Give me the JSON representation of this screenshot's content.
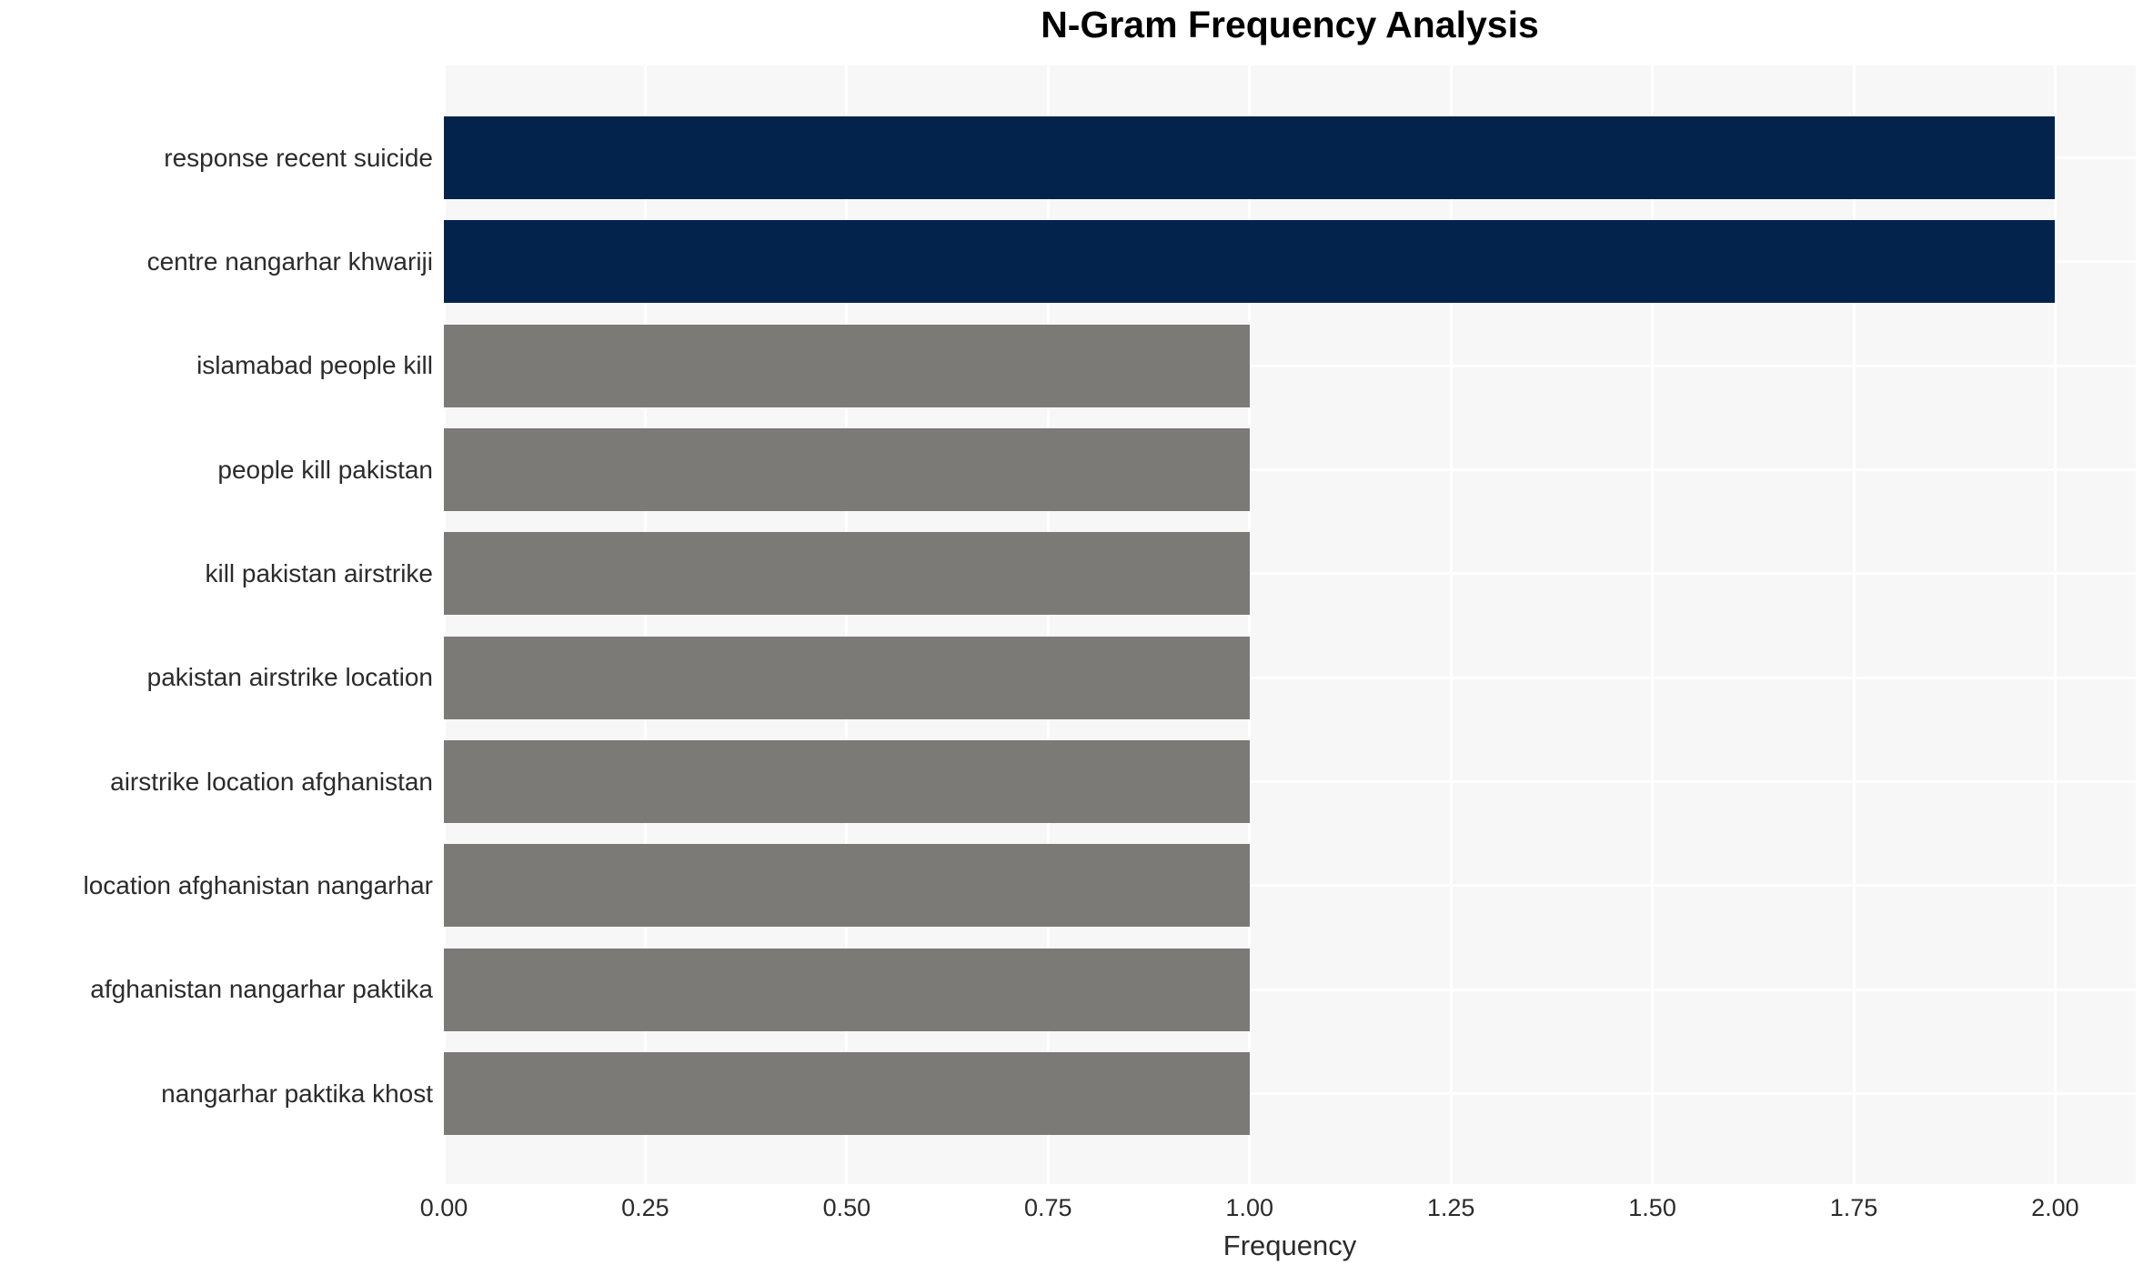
{
  "chart_data": {
    "type": "bar",
    "orientation": "horizontal",
    "title": "N-Gram Frequency Analysis",
    "xlabel": "Frequency",
    "ylabel": "",
    "categories": [
      "response recent suicide",
      "centre nangarhar khwariji",
      "islamabad people kill",
      "people kill pakistan",
      "kill pakistan airstrike",
      "pakistan airstrike location",
      "airstrike location afghanistan",
      "location afghanistan nangarhar",
      "afghanistan nangarhar paktika",
      "nangarhar paktika khost"
    ],
    "values": [
      2,
      2,
      1,
      1,
      1,
      1,
      1,
      1,
      1,
      1
    ],
    "xticks": [
      {
        "value": 0.0,
        "label": "0.00"
      },
      {
        "value": 0.25,
        "label": "0.25"
      },
      {
        "value": 0.5,
        "label": "0.50"
      },
      {
        "value": 0.75,
        "label": "0.75"
      },
      {
        "value": 1.0,
        "label": "1.00"
      },
      {
        "value": 1.25,
        "label": "1.25"
      },
      {
        "value": 1.5,
        "label": "1.50"
      },
      {
        "value": 1.75,
        "label": "1.75"
      },
      {
        "value": 2.0,
        "label": "2.00"
      }
    ],
    "xlim": [
      0,
      2.1
    ],
    "grid": {
      "vertical": true,
      "horizontal": true,
      "grid_color": "#ffffff"
    },
    "legend": null,
    "colors": {
      "highlight_bar": "#03234d",
      "normal_bar": "#7c7a77",
      "plot_background": "#f7f7f7",
      "page_background": "#ffffff",
      "text": "#2b2b2b",
      "title_text": "#000000"
    },
    "bar_colors": [
      "#03234d",
      "#03234d",
      "#7c7a77",
      "#7c7a77",
      "#7c7a77",
      "#7c7a77",
      "#7c7a77",
      "#7c7a77",
      "#7c7a77",
      "#7c7a77"
    ]
  }
}
